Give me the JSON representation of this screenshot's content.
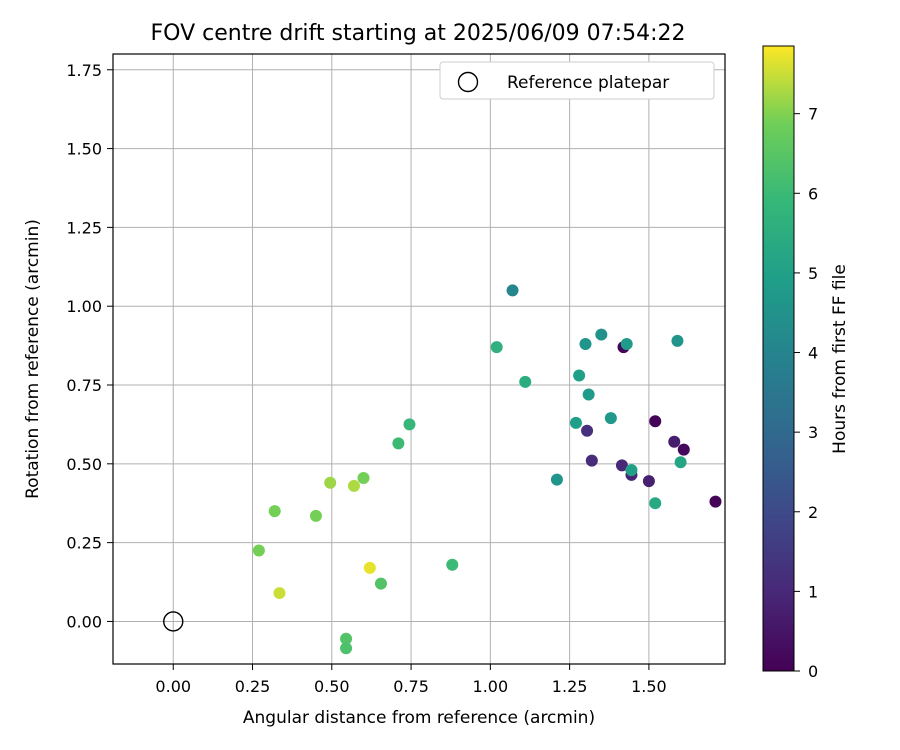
{
  "chart_data": {
    "type": "scatter",
    "title": "FOV centre drift starting at 2025/06/09 07:54:22",
    "xlabel": "Angular distance from reference (arcmin)",
    "ylabel": "Rotation from reference (arcmin)",
    "xlim": [
      -0.19,
      1.74
    ],
    "ylim": [
      -0.135,
      1.8
    ],
    "grid": true,
    "xticks": [
      "0.00",
      "0.25",
      "0.50",
      "0.75",
      "1.00",
      "1.25",
      "1.50"
    ],
    "xtick_values": [
      0,
      0.25,
      0.5,
      0.75,
      1.0,
      1.25,
      1.5
    ],
    "yticks": [
      "0.00",
      "0.25",
      "0.50",
      "0.75",
      "1.00",
      "1.25",
      "1.50",
      "1.75"
    ],
    "ytick_values": [
      0,
      0.25,
      0.5,
      0.75,
      1.0,
      1.25,
      1.5,
      1.75
    ],
    "legend": {
      "placement": "top-right",
      "entries": [
        "Reference platepar"
      ]
    },
    "reference_point": {
      "x": 0.0,
      "y": 0.0
    },
    "colorbar": {
      "label": "Hours from first FF file",
      "colormap": "viridis",
      "range": [
        0,
        7.85
      ],
      "ticks": [
        "0",
        "1",
        "2",
        "3",
        "4",
        "5",
        "6",
        "7"
      ],
      "tick_values": [
        0,
        1,
        2,
        3,
        4,
        5,
        6,
        7
      ]
    },
    "points": [
      {
        "x": 1.42,
        "y": 0.87,
        "c": 0.1
      },
      {
        "x": 1.52,
        "y": 0.635,
        "c": 0.1
      },
      {
        "x": 1.61,
        "y": 0.545,
        "c": 0.2
      },
      {
        "x": 1.71,
        "y": 0.38,
        "c": 0.1
      },
      {
        "x": 1.58,
        "y": 0.57,
        "c": 0.7
      },
      {
        "x": 1.5,
        "y": 0.445,
        "c": 0.8
      },
      {
        "x": 1.445,
        "y": 0.465,
        "c": 0.9
      },
      {
        "x": 1.415,
        "y": 0.495,
        "c": 1.0
      },
      {
        "x": 1.32,
        "y": 0.51,
        "c": 1.1
      },
      {
        "x": 1.305,
        "y": 0.605,
        "c": 1.2
      },
      {
        "x": 1.07,
        "y": 1.05,
        "c": 4.1
      },
      {
        "x": 1.59,
        "y": 0.89,
        "c": 4.6
      },
      {
        "x": 1.35,
        "y": 0.91,
        "c": 4.5
      },
      {
        "x": 1.3,
        "y": 0.88,
        "c": 4.6
      },
      {
        "x": 1.43,
        "y": 0.88,
        "c": 4.8
      },
      {
        "x": 1.28,
        "y": 0.78,
        "c": 5.0
      },
      {
        "x": 1.31,
        "y": 0.72,
        "c": 4.8
      },
      {
        "x": 1.38,
        "y": 0.645,
        "c": 4.7
      },
      {
        "x": 1.27,
        "y": 0.63,
        "c": 4.9
      },
      {
        "x": 1.21,
        "y": 0.45,
        "c": 4.6
      },
      {
        "x": 1.445,
        "y": 0.48,
        "c": 5.0
      },
      {
        "x": 1.6,
        "y": 0.505,
        "c": 5.2
      },
      {
        "x": 1.52,
        "y": 0.375,
        "c": 5.3
      },
      {
        "x": 1.02,
        "y": 0.87,
        "c": 5.6
      },
      {
        "x": 1.11,
        "y": 0.76,
        "c": 5.5
      },
      {
        "x": 0.745,
        "y": 0.625,
        "c": 5.9
      },
      {
        "x": 0.71,
        "y": 0.565,
        "c": 6.0
      },
      {
        "x": 0.88,
        "y": 0.18,
        "c": 6.0
      },
      {
        "x": 0.655,
        "y": 0.12,
        "c": 6.4
      },
      {
        "x": 0.545,
        "y": -0.055,
        "c": 6.4
      },
      {
        "x": 0.545,
        "y": -0.085,
        "c": 6.3
      },
      {
        "x": 0.6,
        "y": 0.455,
        "c": 6.9
      },
      {
        "x": 0.57,
        "y": 0.43,
        "c": 7.3
      },
      {
        "x": 0.495,
        "y": 0.44,
        "c": 7.2
      },
      {
        "x": 0.32,
        "y": 0.35,
        "c": 6.9
      },
      {
        "x": 0.45,
        "y": 0.335,
        "c": 6.9
      },
      {
        "x": 0.27,
        "y": 0.225,
        "c": 6.9
      },
      {
        "x": 0.62,
        "y": 0.17,
        "c": 7.7
      },
      {
        "x": 0.335,
        "y": 0.09,
        "c": 7.5
      }
    ]
  }
}
